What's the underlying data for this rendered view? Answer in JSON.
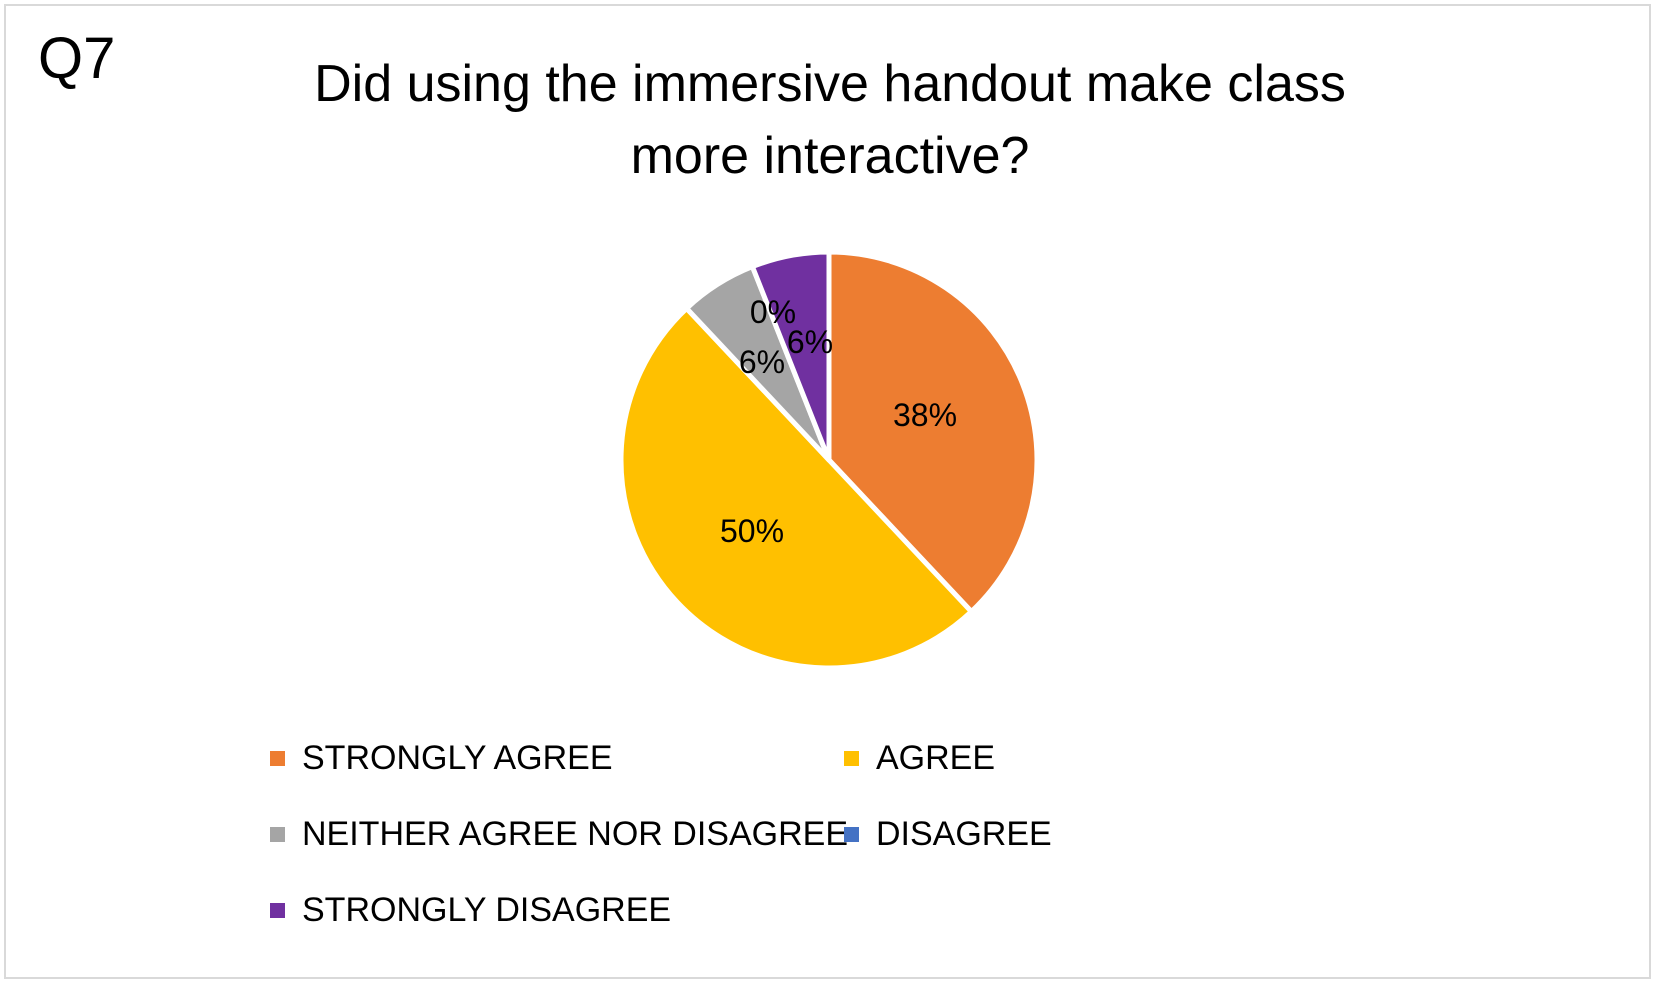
{
  "question_label": "Q7",
  "chart_data": {
    "type": "pie",
    "title_line1": "Did using the immersive handout make class",
    "title_line2": "more interactive?",
    "slices": [
      {
        "label": "STRONGLY AGREE",
        "value": 38,
        "display": "38%",
        "color": "#ED7D31"
      },
      {
        "label": "AGREE",
        "value": 50,
        "display": "50%",
        "color": "#FFC000"
      },
      {
        "label": "NEITHER AGREE NOR DISAGREE",
        "value": 6,
        "display": "6%",
        "color": "#A5A5A5"
      },
      {
        "label": "DISAGREE",
        "value": 0,
        "display": "0%",
        "color": "#4472C4"
      },
      {
        "label": "STRONGLY DISAGREE",
        "value": 6,
        "display": "6%",
        "color": "#7030A0"
      }
    ],
    "legend_position": "bottom"
  }
}
